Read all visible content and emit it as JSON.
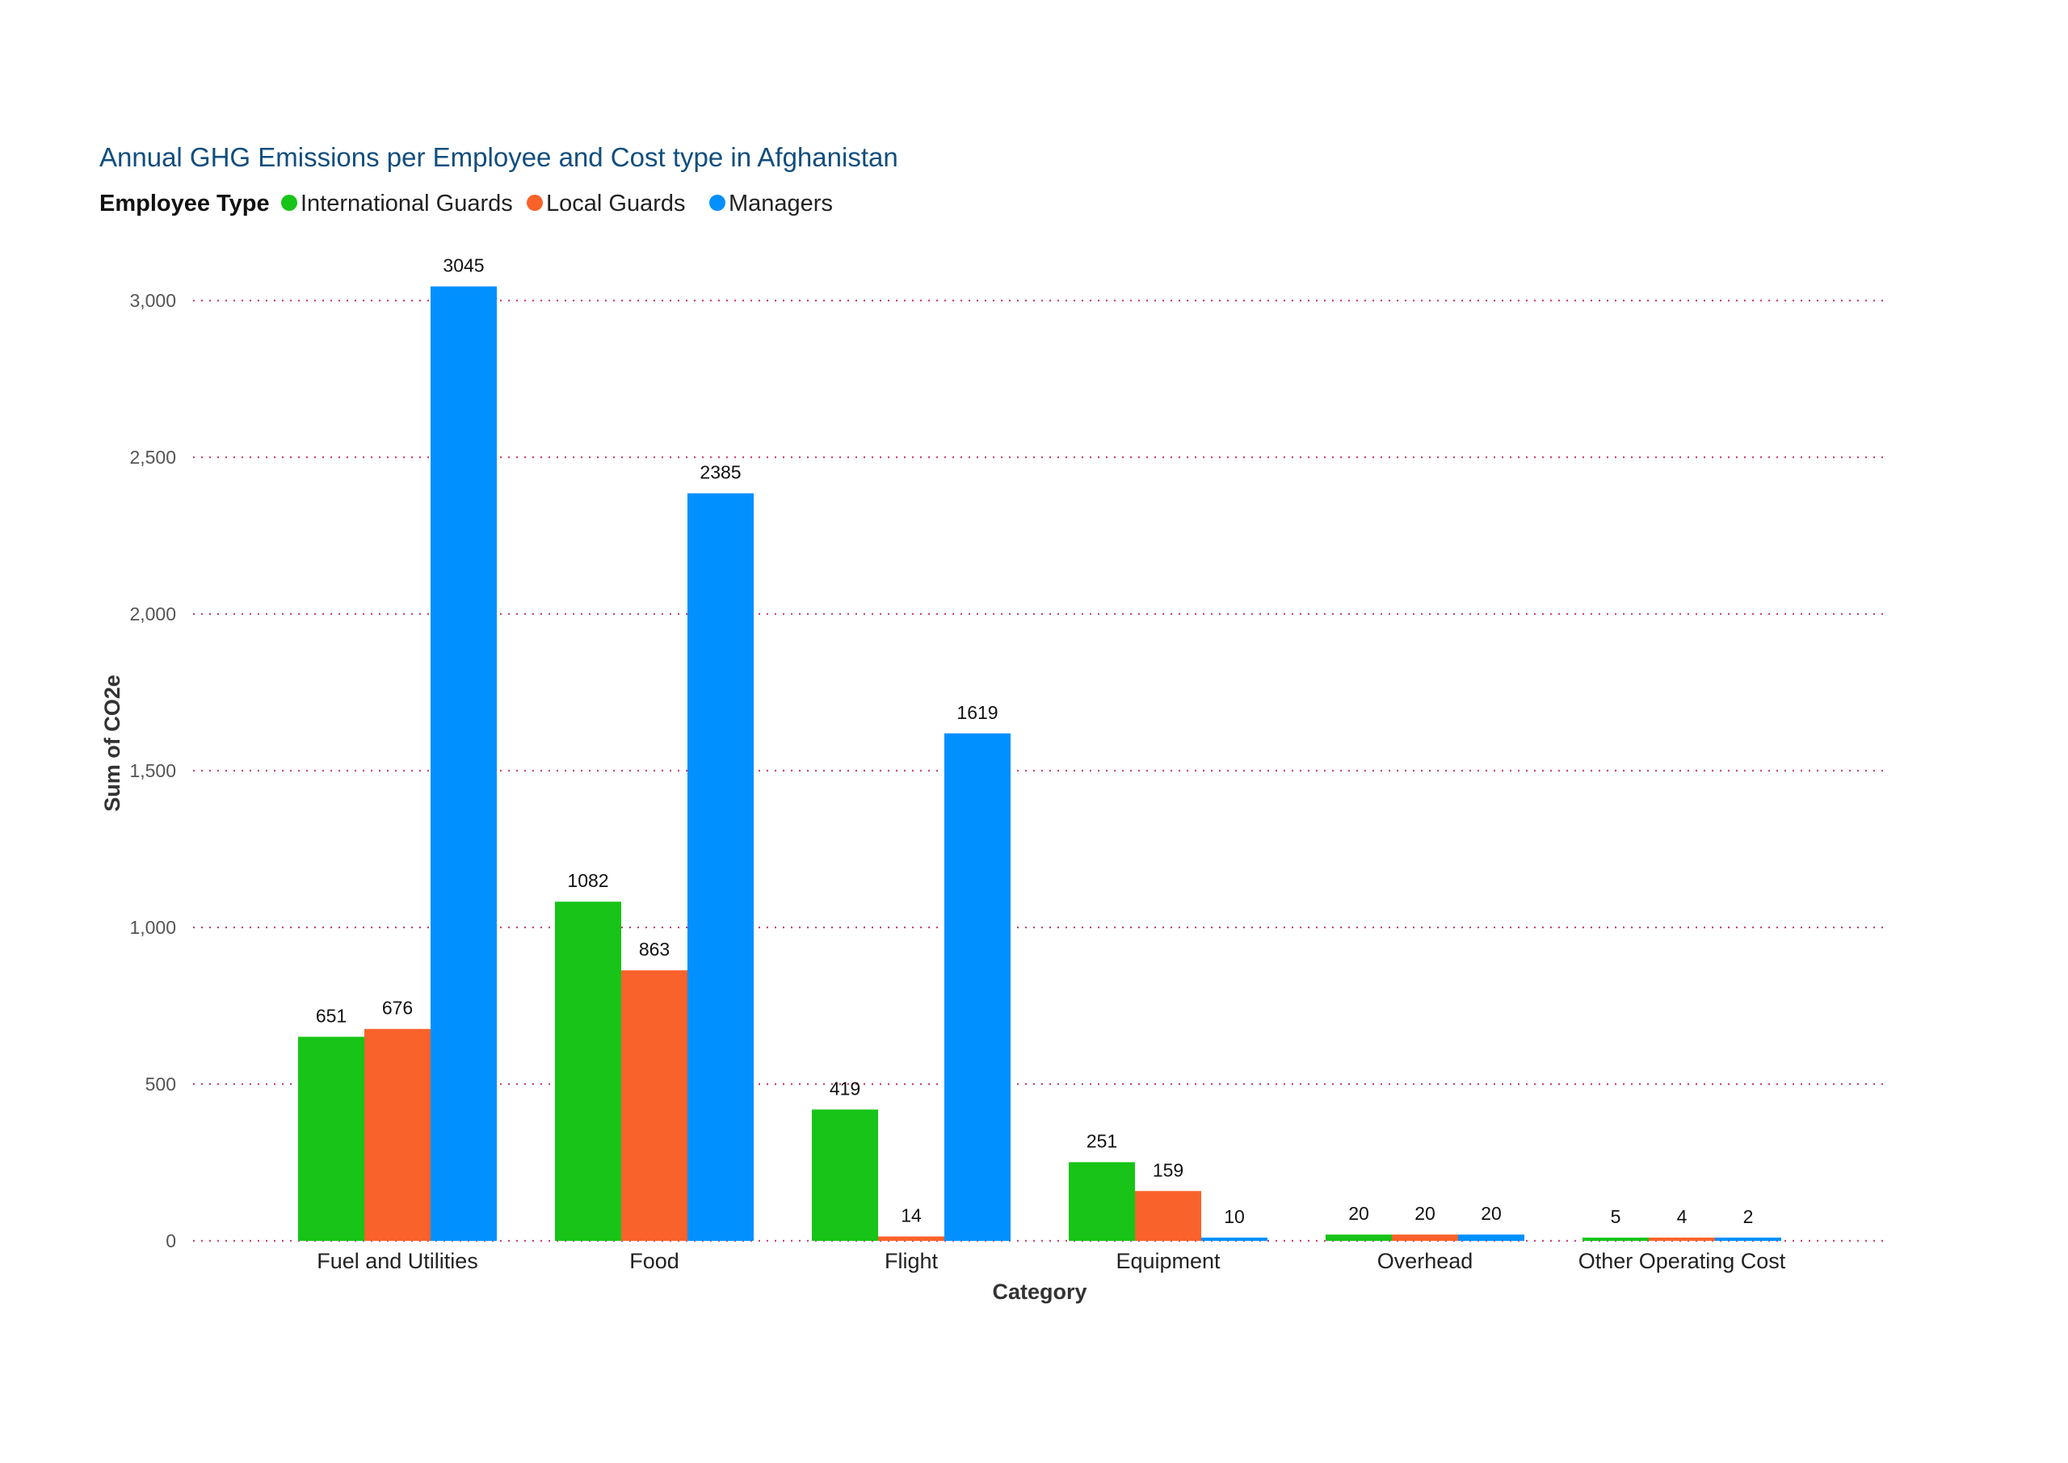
{
  "chart_data": {
    "type": "bar",
    "title": "Annual GHG Emissions per Employee and Cost type in Afghanistan",
    "legend_title": "Employee Type",
    "legend_position": "top-left",
    "xlabel": "Category",
    "ylabel": "Sum of CO2e",
    "ylim": [
      0,
      3000
    ],
    "yticks": [
      0,
      500,
      1000,
      1500,
      2000,
      2500,
      3000
    ],
    "ytick_labels": [
      "0",
      "500",
      "1,000",
      "1,500",
      "2,000",
      "2,500",
      "3,000"
    ],
    "grid": true,
    "categories": [
      "Fuel and Utilities",
      "Food",
      "Flight",
      "Equipment",
      "Overhead",
      "Other Operating Cost"
    ],
    "series": [
      {
        "name": "International Guards",
        "color": "#17C417",
        "values": [
          651,
          1082,
          419,
          251,
          20,
          5
        ]
      },
      {
        "name": "Local Guards",
        "color": "#F9622A",
        "values": [
          676,
          863,
          14,
          159,
          20,
          4
        ]
      },
      {
        "name": "Managers",
        "color": "#0090FF",
        "values": [
          3045,
          2385,
          1619,
          10,
          20,
          2
        ]
      }
    ]
  }
}
